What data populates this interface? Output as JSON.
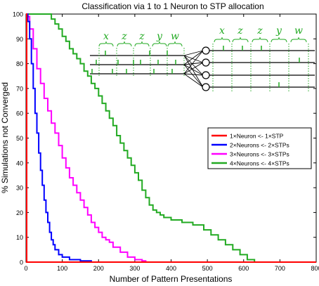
{
  "chart_data": {
    "type": "line",
    "title": "Classification via 1 to 1 Neuron to STP  allocation",
    "xlabel": "Number of Pattern Presentations",
    "ylabel": "% Simulations not Converged",
    "xlim": [
      0,
      800
    ],
    "ylim": [
      0,
      100
    ],
    "xticks": [
      0,
      100,
      200,
      300,
      400,
      500,
      600,
      700,
      800
    ],
    "yticks": [
      0,
      10,
      20,
      30,
      40,
      50,
      60,
      70,
      80,
      90,
      100
    ],
    "grid": false,
    "legend_position": "right-middle",
    "series": [
      {
        "name": "1×Neuron  <- 1×STP",
        "color": "#ff0000",
        "points": [
          [
            0,
            100
          ],
          [
            2,
            100
          ],
          [
            2,
            0
          ],
          [
            800,
            0
          ]
        ]
      },
      {
        "name": "2×Neurons <- 2×STPs",
        "color": "#0000ff",
        "points": [
          [
            0,
            100
          ],
          [
            5,
            97
          ],
          [
            10,
            90
          ],
          [
            15,
            80
          ],
          [
            20,
            70
          ],
          [
            25,
            60
          ],
          [
            30,
            52
          ],
          [
            35,
            44
          ],
          [
            40,
            37
          ],
          [
            45,
            31
          ],
          [
            50,
            25
          ],
          [
            55,
            20
          ],
          [
            60,
            16
          ],
          [
            65,
            12
          ],
          [
            70,
            9
          ],
          [
            75,
            7
          ],
          [
            80,
            5
          ],
          [
            90,
            3
          ],
          [
            100,
            2
          ],
          [
            120,
            1
          ],
          [
            150,
            0.5
          ],
          [
            180,
            0
          ],
          [
            800,
            0
          ]
        ]
      },
      {
        "name": "3×Neurons <- 3×STPs",
        "color": "#ff00ff",
        "points": [
          [
            0,
            100
          ],
          [
            5,
            99
          ],
          [
            10,
            94
          ],
          [
            20,
            86
          ],
          [
            30,
            78
          ],
          [
            40,
            72
          ],
          [
            50,
            66
          ],
          [
            60,
            61
          ],
          [
            70,
            56
          ],
          [
            80,
            52
          ],
          [
            90,
            47
          ],
          [
            100,
            42
          ],
          [
            110,
            38
          ],
          [
            120,
            34
          ],
          [
            130,
            31
          ],
          [
            140,
            28
          ],
          [
            150,
            25
          ],
          [
            160,
            22
          ],
          [
            170,
            19
          ],
          [
            180,
            16
          ],
          [
            190,
            14
          ],
          [
            200,
            12
          ],
          [
            210,
            10
          ],
          [
            220,
            9
          ],
          [
            230,
            8
          ],
          [
            240,
            6
          ],
          [
            260,
            4
          ],
          [
            280,
            2
          ],
          [
            300,
            1
          ],
          [
            320,
            0.5
          ],
          [
            330,
            0
          ],
          [
            800,
            0
          ]
        ]
      },
      {
        "name": "4×Neurons <- 4×STPs",
        "color": "#22aa22",
        "points": [
          [
            0,
            100
          ],
          [
            60,
            100
          ],
          [
            70,
            98
          ],
          [
            80,
            96
          ],
          [
            90,
            94
          ],
          [
            100,
            91
          ],
          [
            110,
            89
          ],
          [
            120,
            86
          ],
          [
            130,
            84
          ],
          [
            140,
            82
          ],
          [
            150,
            80
          ],
          [
            160,
            77
          ],
          [
            170,
            75
          ],
          [
            180,
            72
          ],
          [
            190,
            70
          ],
          [
            200,
            67
          ],
          [
            210,
            64
          ],
          [
            220,
            61
          ],
          [
            230,
            58
          ],
          [
            240,
            55
          ],
          [
            250,
            51
          ],
          [
            260,
            48
          ],
          [
            270,
            45
          ],
          [
            280,
            42
          ],
          [
            290,
            39
          ],
          [
            300,
            36
          ],
          [
            310,
            33
          ],
          [
            320,
            29
          ],
          [
            330,
            26
          ],
          [
            340,
            23
          ],
          [
            350,
            21
          ],
          [
            360,
            20
          ],
          [
            370,
            19
          ],
          [
            380,
            18
          ],
          [
            400,
            17
          ],
          [
            430,
            16
          ],
          [
            460,
            15
          ],
          [
            490,
            13
          ],
          [
            510,
            11
          ],
          [
            530,
            9
          ],
          [
            550,
            7
          ],
          [
            570,
            5
          ],
          [
            590,
            3
          ],
          [
            610,
            1
          ],
          [
            630,
            0
          ],
          [
            800,
            0
          ]
        ]
      }
    ]
  },
  "inset": {
    "left_labels": [
      "x",
      "z",
      "z",
      "y",
      "w"
    ],
    "right_labels": [
      "x",
      "z",
      "z",
      "y",
      "w"
    ],
    "color": "#22aa22"
  }
}
